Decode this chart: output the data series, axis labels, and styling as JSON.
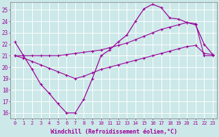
{
  "bg_color": "#cce8e8",
  "grid_color": "#aacccc",
  "line_color": "#990099",
  "xlabel": "Windchill (Refroidissement éolien,°C)",
  "xlabel_color": "#990099",
  "tick_color": "#990099",
  "xlim": [
    -0.5,
    23.5
  ],
  "ylim": [
    15.5,
    25.7
  ],
  "yticks": [
    16,
    17,
    18,
    19,
    20,
    21,
    22,
    23,
    24,
    25
  ],
  "xticks": [
    0,
    1,
    2,
    3,
    4,
    5,
    6,
    7,
    8,
    9,
    10,
    11,
    12,
    13,
    14,
    15,
    16,
    17,
    18,
    19,
    20,
    21,
    22,
    23
  ],
  "line1_x": [
    0,
    1,
    2,
    3,
    4,
    5,
    6,
    7,
    8,
    9,
    10,
    11,
    12,
    13,
    14,
    15,
    16,
    17,
    18,
    19,
    20,
    21,
    22,
    23
  ],
  "line1_y": [
    22.2,
    21.0,
    19.8,
    18.5,
    17.7,
    16.8,
    16.0,
    16.0,
    17.2,
    19.0,
    21.0,
    21.5,
    22.2,
    22.8,
    24.0,
    25.1,
    25.5,
    25.2,
    24.3,
    24.2,
    23.9,
    23.7,
    22.0,
    21.1
  ],
  "line2_x": [
    0,
    1,
    2,
    3,
    4,
    5,
    6,
    7,
    8,
    9,
    10,
    11,
    12,
    13,
    14,
    15,
    16,
    17,
    18,
    19,
    20,
    21,
    22,
    23
  ],
  "line2_y": [
    21.0,
    21.0,
    21.0,
    21.0,
    21.0,
    21.0,
    21.1,
    21.2,
    21.3,
    21.4,
    21.5,
    21.7,
    21.9,
    22.1,
    22.4,
    22.7,
    23.0,
    23.3,
    23.5,
    23.7,
    23.9,
    23.8,
    21.0,
    21.0
  ],
  "line3_x": [
    0,
    1,
    2,
    3,
    4,
    5,
    6,
    7,
    8,
    9,
    10,
    11,
    12,
    13,
    14,
    15,
    16,
    17,
    18,
    19,
    20,
    21,
    22,
    23
  ],
  "line3_y": [
    21.0,
    20.8,
    20.5,
    20.2,
    19.9,
    19.6,
    19.3,
    19.0,
    19.2,
    19.5,
    19.8,
    20.0,
    20.2,
    20.4,
    20.6,
    20.8,
    21.0,
    21.2,
    21.4,
    21.6,
    21.8,
    21.9,
    21.2,
    21.1
  ]
}
